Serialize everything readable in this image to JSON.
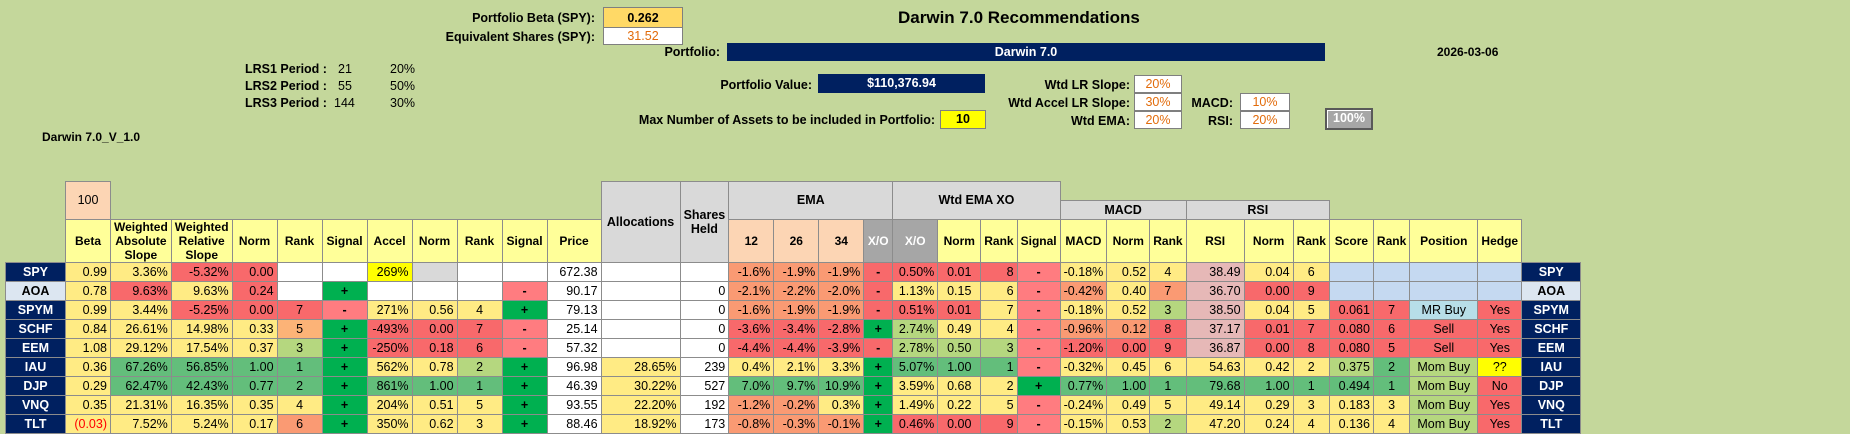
{
  "header": {
    "portfolio_beta_label": "Portfolio Beta (SPY):",
    "portfolio_beta_value": "0.262",
    "equiv_shares_label": "Equivalent Shares (SPY):",
    "equiv_shares_value": "31.52",
    "title": "Darwin 7.0 Recommendations",
    "portfolio_label": "Portfolio:",
    "portfolio_name": "Darwin 7.0",
    "date": "2026-03-06",
    "portfolio_value_label": "Portfolio Value:",
    "portfolio_value": "$110,376.94",
    "max_assets_label": "Max Number of Assets to be included in Portfolio:",
    "max_assets_value": "10",
    "version": "Darwin 7.0_V_1.0",
    "weights": {
      "lr_slope_label": "Wtd LR Slope:",
      "lr_slope": "20%",
      "accel_label": "Wtd Accel LR Slope:",
      "accel": "30%",
      "ema_label": "Wtd EMA:",
      "ema": "20%",
      "macd_label": "MACD:",
      "macd": "10%",
      "rsi_label": "RSI:",
      "rsi": "20%",
      "total": "100%"
    },
    "lrs": [
      {
        "label": "LRS1 Period :",
        "period": "21",
        "pct": "20%"
      },
      {
        "label": "LRS2 Period :",
        "period": "55",
        "pct": "50%"
      },
      {
        "label": "LRS3 Period :",
        "period": "144",
        "pct": "30%"
      }
    ]
  },
  "table": {
    "beta_pct": "100",
    "headers": {
      "beta": "Beta",
      "was": "Weighted Absolute Slope",
      "wrs": "Weighted Relative Slope",
      "norm": "Norm",
      "rank": "Rank",
      "signal": "Signal",
      "accel": "Accel",
      "price": "Price",
      "alloc": "Allocations",
      "shares": "Shares Held",
      "ema": "EMA",
      "wtd_ema_xo": "Wtd EMA XO",
      "macd": "MACD",
      "rsi": "RSI",
      "e12": "12",
      "e26": "26",
      "e34": "34",
      "xo": "X/O",
      "score": "Score",
      "position": "Position",
      "hedge": "Hedge"
    },
    "rows": [
      [
        "SPY",
        "0.99",
        "3.36%",
        "-5.32%",
        "0.00",
        "",
        "",
        "269%",
        "",
        "",
        "",
        "672.38",
        "",
        "",
        "-1.6%",
        "-1.9%",
        "-1.9%",
        "-",
        "0.50%",
        "0.01",
        "8",
        "-",
        "-0.18%",
        "0.52",
        "4",
        "38.49",
        "0.04",
        "6",
        "",
        "",
        "",
        "",
        "SPY"
      ],
      [
        "AOA",
        "0.78",
        "9.63%",
        "9.63%",
        "0.24",
        "",
        "+",
        "",
        "",
        "",
        "-",
        "90.17",
        "",
        "0",
        "-2.1%",
        "-2.2%",
        "-2.0%",
        "-",
        "1.13%",
        "0.15",
        "6",
        "-",
        "-0.42%",
        "0.40",
        "7",
        "36.70",
        "0.00",
        "9",
        "",
        "",
        "",
        "",
        "AOA"
      ],
      [
        "SPYM",
        "0.99",
        "3.44%",
        "-5.25%",
        "0.00",
        "7",
        "-",
        "271%",
        "0.56",
        "4",
        "+",
        "79.13",
        "",
        "0",
        "-1.6%",
        "-1.9%",
        "-1.9%",
        "-",
        "0.51%",
        "0.01",
        "7",
        "-",
        "-0.18%",
        "0.52",
        "3",
        "38.50",
        "0.04",
        "5",
        "0.061",
        "7",
        "MR Buy",
        "Yes",
        "SPYM"
      ],
      [
        "SCHF",
        "0.84",
        "26.61%",
        "14.98%",
        "0.33",
        "5",
        "+",
        "-493%",
        "0.00",
        "7",
        "-",
        "25.14",
        "",
        "0",
        "-3.6%",
        "-3.4%",
        "-2.8%",
        "+",
        "2.74%",
        "0.49",
        "4",
        "-",
        "-0.96%",
        "0.12",
        "8",
        "37.17",
        "0.01",
        "7",
        "0.080",
        "6",
        "Sell",
        "Yes",
        "SCHF"
      ],
      [
        "EEM",
        "1.08",
        "29.12%",
        "17.54%",
        "0.37",
        "3",
        "+",
        "-250%",
        "0.18",
        "6",
        "-",
        "57.32",
        "",
        "0",
        "-4.4%",
        "-4.4%",
        "-3.9%",
        "-",
        "2.78%",
        "0.50",
        "3",
        "-",
        "-1.20%",
        "0.00",
        "9",
        "36.87",
        "0.00",
        "8",
        "0.080",
        "5",
        "Sell",
        "Yes",
        "EEM"
      ],
      [
        "IAU",
        "0.36",
        "67.26%",
        "56.85%",
        "1.00",
        "1",
        "+",
        "562%",
        "0.78",
        "2",
        "+",
        "96.98",
        "28.65%",
        "239",
        "0.4%",
        "2.1%",
        "3.3%",
        "+",
        "5.07%",
        "1.00",
        "1",
        "-",
        "-0.32%",
        "0.45",
        "6",
        "54.63",
        "0.42",
        "2",
        "0.375",
        "2",
        "Mom Buy",
        "??",
        "IAU"
      ],
      [
        "DJP",
        "0.29",
        "62.47%",
        "42.43%",
        "0.77",
        "2",
        "+",
        "861%",
        "1.00",
        "1",
        "+",
        "46.39",
        "30.22%",
        "527",
        "7.0%",
        "9.7%",
        "10.9%",
        "+",
        "3.59%",
        "0.68",
        "2",
        "+",
        "0.77%",
        "1.00",
        "1",
        "79.68",
        "1.00",
        "1",
        "0.494",
        "1",
        "Mom Buy",
        "No",
        "DJP"
      ],
      [
        "VNQ",
        "0.35",
        "21.31%",
        "16.35%",
        "0.35",
        "4",
        "+",
        "204%",
        "0.51",
        "5",
        "+",
        "93.55",
        "22.20%",
        "192",
        "-1.2%",
        "-0.2%",
        "0.3%",
        "+",
        "1.49%",
        "0.22",
        "5",
        "-",
        "-0.24%",
        "0.49",
        "5",
        "49.14",
        "0.29",
        "3",
        "0.183",
        "3",
        "Mom Buy",
        "Yes",
        "VNQ"
      ],
      [
        "TLT",
        "(0.03)",
        "7.52%",
        "5.24%",
        "0.17",
        "6",
        "+",
        "350%",
        "0.62",
        "3",
        "+",
        "88.46",
        "18.92%",
        "173",
        "-0.8%",
        "-0.3%",
        "-0.1%",
        "+",
        "0.46%",
        "0.00",
        "9",
        "-",
        "-0.15%",
        "0.53",
        "2",
        "47.20",
        "0.24",
        "4",
        "0.136",
        "4",
        "Mom Buy",
        "Yes",
        "TLT"
      ]
    ]
  }
}
